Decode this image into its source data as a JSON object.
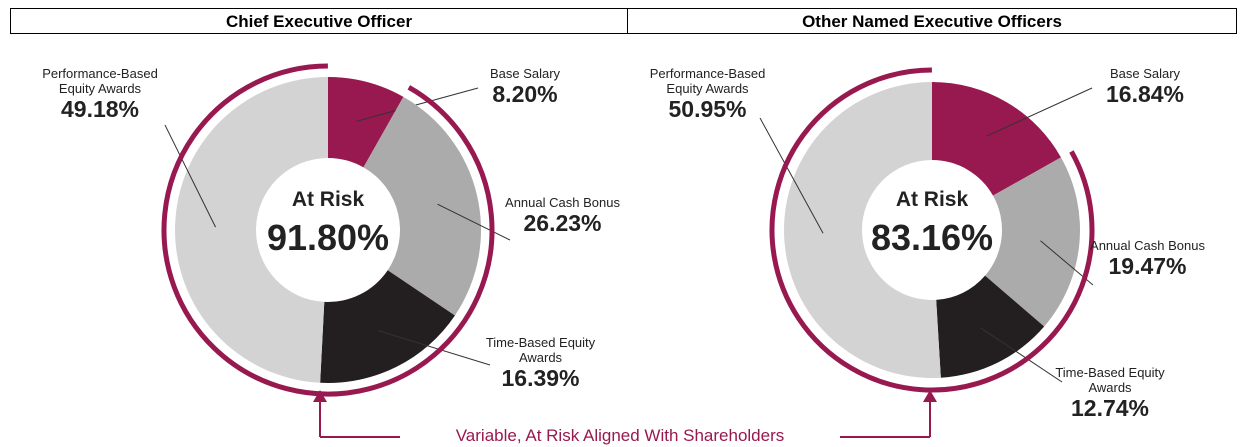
{
  "chart_data": [
    {
      "type": "pie",
      "title": "Chief Executive Officer",
      "categories": [
        "Base Salary",
        "Annual Cash Bonus",
        "Time-Based Equity Awards",
        "Performance-Based Equity Awards"
      ],
      "values": [
        8.2,
        26.23,
        16.39,
        49.18
      ],
      "value_labels": [
        "8.20%",
        "26.23%",
        "16.39%",
        "49.18%"
      ],
      "colors": [
        "#98194f",
        "#ababab",
        "#231f20",
        "#d3d3d3"
      ],
      "at_risk": {
        "label": "At Risk",
        "value": 91.8,
        "value_label": "91.80%"
      },
      "ring_color": "#98194f"
    },
    {
      "type": "pie",
      "title": "Other Named Executive Officers",
      "categories": [
        "Base Salary",
        "Annual Cash Bonus",
        "Time-Based Equity Awards",
        "Performance-Based Equity Awards"
      ],
      "values": [
        16.84,
        19.47,
        12.74,
        50.95
      ],
      "value_labels": [
        "16.84%",
        "19.47%",
        "12.74%",
        "50.95%"
      ],
      "colors": [
        "#98194f",
        "#ababab",
        "#231f20",
        "#d3d3d3"
      ],
      "at_risk": {
        "label": "At Risk",
        "value": 83.16,
        "value_label": "83.16%"
      },
      "ring_color": "#98194f"
    }
  ],
  "footer_note": "Variable, At Risk Aligned With Shareholders"
}
